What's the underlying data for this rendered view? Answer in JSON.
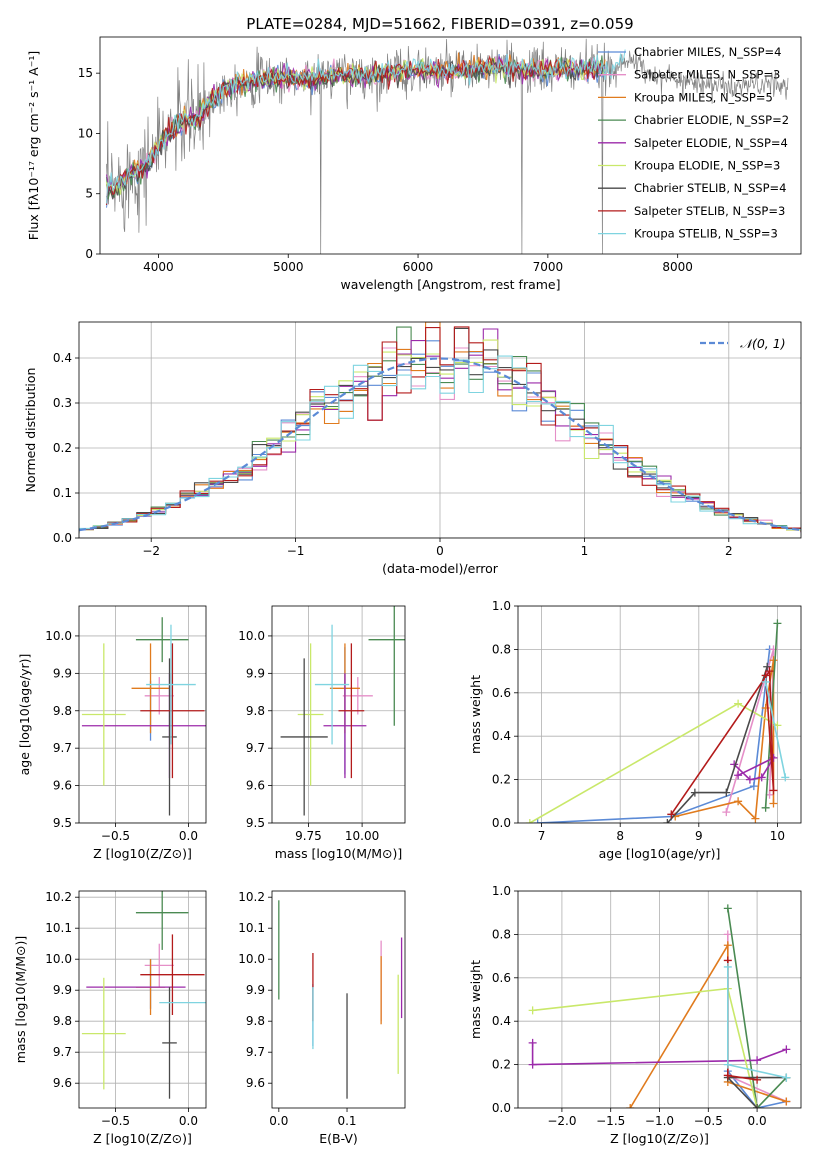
{
  "figure": {
    "title": "PLATE=0284, MJD=51662, FIBERID=0391, z=0.059"
  },
  "colors": {
    "observed": "#808080",
    "models": [
      "#5b8ad6",
      "#e58fc8",
      "#e07b1e",
      "#4a8a52",
      "#9b2aaa",
      "#c9e86a",
      "#4a4a4a",
      "#b31b1b",
      "#7fd4e0"
    ]
  },
  "chart_data": [
    {
      "id": "spectrum",
      "type": "line",
      "title": "PLATE=0284, MJD=51662, FIBERID=0391, z=0.059",
      "xlabel": "wavelength [Angstrom, rest frame]",
      "ylabel": "Flux [fλ10⁻¹⁷ erg cm⁻² s⁻¹ A⁻¹]",
      "xlim": [
        3550,
        8950
      ],
      "ylim": [
        0,
        18
      ],
      "xticks": [
        4000,
        5000,
        6000,
        7000,
        8000
      ],
      "yticks": [
        0,
        5,
        10,
        15
      ],
      "legend_position": "right",
      "legend": [
        "Chabrier MILES, N_SSP=4",
        "Salpeter MILES, N_SSP=3",
        "Kroupa MILES, N_SSP=5",
        "Chabrier ELODIE, N_SSP=2",
        "Salpeter ELODIE, N_SSP=4",
        "Kroupa ELODIE, N_SSP=3",
        "Chabrier STELIB, N_SSP=4",
        "Salpeter STELIB, N_SSP=3",
        "Kroupa STELIB, N_SSP=3"
      ],
      "continuum": {
        "x": [
          3600,
          3700,
          3800,
          3900,
          4000,
          4100,
          4200,
          4300,
          4400,
          4500,
          4600,
          4700,
          4800,
          4900,
          5000,
          5200,
          5400,
          5600,
          5800,
          6000,
          6200,
          6400,
          6600,
          6800,
          7000,
          7200,
          7400,
          7500,
          7600,
          7800,
          8000,
          8200,
          8400,
          8600,
          8800
        ],
        "y": [
          5.3,
          5.8,
          6.8,
          7.3,
          8.9,
          10.4,
          11.1,
          11.2,
          12.7,
          13.6,
          14.2,
          14.2,
          14.6,
          14.6,
          14.6,
          14.6,
          14.9,
          14.8,
          15.0,
          15.3,
          15.1,
          15.2,
          15.5,
          15.3,
          15.2,
          15.4,
          15.3,
          15.2,
          16.3,
          14.9,
          14.5,
          14.2,
          13.8,
          14.1,
          13.9
        ]
      }
    },
    {
      "id": "residuals",
      "type": "histogram",
      "xlabel": "(data-model)/error",
      "ylabel": "Normed distribution",
      "xlim": [
        -2.5,
        2.5
      ],
      "ylim": [
        0,
        0.48
      ],
      "xticks": [
        -2,
        -1,
        0,
        1,
        2
      ],
      "yticks": [
        0.0,
        0.1,
        0.2,
        0.3,
        0.4
      ],
      "legend": [
        "𝒩(0, 1)"
      ],
      "legend_position": "top-right",
      "grid": true
    },
    {
      "id": "age-vs-Z",
      "type": "errorbar",
      "xlabel": "Z [log10(Z/Z⊙)]",
      "ylabel": "age  [log10(age/yr)]",
      "xlim": [
        -0.75,
        0.12
      ],
      "ylim": [
        9.5,
        10.08
      ],
      "xticks": [
        -0.5,
        0.0
      ],
      "yticks": [
        9.5,
        9.6,
        9.7,
        9.8,
        9.9,
        10.0
      ],
      "grid": true,
      "points": [
        {
          "x": -0.26,
          "y": 9.8,
          "xerr": 0.0,
          "yerr": 0.08
        },
        {
          "x": -0.2,
          "y": 9.84,
          "xerr": 0.1,
          "yerr": 0.05
        },
        {
          "x": -0.26,
          "y": 9.86,
          "xerr": 0.13,
          "yerr": 0.12
        },
        {
          "x": -0.18,
          "y": 9.99,
          "xerr": 0.18,
          "yerr": 0.06
        },
        {
          "x": -0.13,
          "y": 9.76,
          "xerr": 0.6,
          "yerr": 0.14
        },
        {
          "x": -0.58,
          "y": 9.79,
          "xerr": 0.15,
          "yerr": 0.19
        },
        {
          "x": -0.13,
          "y": 9.73,
          "xerr": 0.05,
          "yerr": 0.21
        },
        {
          "x": -0.11,
          "y": 9.8,
          "xerr": 0.22,
          "yerr": 0.18
        },
        {
          "x": -0.12,
          "y": 9.87,
          "xerr": 0.17,
          "yerr": 0.16
        }
      ]
    },
    {
      "id": "age-vs-mass",
      "type": "errorbar",
      "xlabel": "mass [log10(M/M⊙)]",
      "ylabel": "",
      "xlim": [
        9.58,
        10.2
      ],
      "ylim": [
        9.5,
        10.08
      ],
      "xticks": [
        9.75,
        10.0
      ],
      "yticks": [
        9.5,
        9.6,
        9.7,
        9.8,
        9.9,
        10.0
      ],
      "grid": true,
      "points": [
        {
          "x": 9.92,
          "y": 9.8,
          "xerr": 0.0,
          "yerr": 0.17
        },
        {
          "x": 9.98,
          "y": 9.84,
          "xerr": 0.07,
          "yerr": 0.05
        },
        {
          "x": 9.92,
          "y": 9.86,
          "xerr": 0.07,
          "yerr": 0.12
        },
        {
          "x": 10.15,
          "y": 9.99,
          "xerr": 0.12,
          "yerr": 0.23
        },
        {
          "x": 9.92,
          "y": 9.76,
          "xerr": 0.1,
          "yerr": 0.14
        },
        {
          "x": 9.76,
          "y": 9.79,
          "xerr": 0.06,
          "yerr": 0.19
        },
        {
          "x": 9.73,
          "y": 9.73,
          "xerr": 0.11,
          "yerr": 0.21
        },
        {
          "x": 9.95,
          "y": 9.8,
          "xerr": 0.06,
          "yerr": 0.18
        },
        {
          "x": 9.86,
          "y": 9.87,
          "xerr": 0.08,
          "yerr": 0.16
        }
      ]
    },
    {
      "id": "mass-weight-vs-age",
      "type": "line",
      "xlabel": "age  [log10(age/yr)]",
      "ylabel": "mass weight",
      "xlim": [
        6.7,
        10.3
      ],
      "ylim": [
        0,
        1
      ],
      "xticks": [
        7,
        8,
        9,
        10
      ],
      "yticks": [
        0.0,
        0.2,
        0.4,
        0.6,
        0.8,
        1.0
      ],
      "grid": true,
      "series": [
        {
          "points": [
            [
              6.95,
              0.0
            ],
            [
              8.65,
              0.03
            ],
            [
              9.7,
              0.17
            ],
            [
              9.9,
              0.8
            ]
          ]
        },
        {
          "points": [
            [
              9.35,
              0.05
            ],
            [
              9.95,
              0.8
            ],
            [
              9.9,
              0.13
            ]
          ]
        },
        {
          "points": [
            [
              8.7,
              0.03
            ],
            [
              9.5,
              0.1
            ],
            [
              9.72,
              0.02
            ],
            [
              9.85,
              0.53
            ],
            [
              9.95,
              0.75
            ],
            [
              9.95,
              0.09
            ]
          ]
        },
        {
          "points": [
            [
              9.85,
              0.07
            ],
            [
              10.0,
              0.92
            ]
          ]
        },
        {
          "points": [
            [
              9.45,
              0.27
            ],
            [
              9.65,
              0.2
            ],
            [
              9.8,
              0.21
            ],
            [
              9.95,
              0.3
            ],
            [
              9.5,
              0.22
            ]
          ]
        },
        {
          "points": [
            [
              6.85,
              0.0
            ],
            [
              9.5,
              0.55
            ],
            [
              10.0,
              0.45
            ]
          ]
        },
        {
          "points": [
            [
              8.6,
              0.0
            ],
            [
              8.95,
              0.14
            ],
            [
              9.35,
              0.14
            ],
            [
              9.87,
              0.72
            ]
          ]
        },
        {
          "points": [
            [
              8.65,
              0.04
            ],
            [
              9.9,
              0.7
            ],
            [
              9.95,
              0.15
            ],
            [
              9.85,
              0.68
            ]
          ]
        },
        {
          "points": [
            [
              9.85,
              0.65
            ],
            [
              10.1,
              0.21
            ]
          ]
        }
      ]
    },
    {
      "id": "mass-vs-Z",
      "type": "errorbar",
      "xlabel": "Z [log10(Z/Z⊙)]",
      "ylabel": "mass [log10(M/M⊙)]",
      "xlim": [
        -0.75,
        0.12
      ],
      "ylim": [
        9.52,
        10.22
      ],
      "xticks": [
        -0.5,
        0.0
      ],
      "yticks": [
        9.6,
        9.7,
        9.8,
        9.9,
        10.0,
        10.1,
        10.2
      ],
      "grid": true,
      "points": [
        {
          "x": -0.26,
          "y": 9.92,
          "xerr": 0.0,
          "yerr": 0.08
        },
        {
          "x": -0.2,
          "y": 9.98,
          "xerr": 0.1,
          "yerr": 0.07
        },
        {
          "x": -0.26,
          "y": 9.91,
          "xerr": 0.1,
          "yerr": 0.09
        },
        {
          "x": -0.18,
          "y": 10.15,
          "xerr": 0.18,
          "yerr": 0.12
        },
        {
          "x": -0.36,
          "y": 9.91,
          "xerr": 0.34,
          "yerr": 0.0
        },
        {
          "x": -0.58,
          "y": 9.76,
          "xerr": 0.15,
          "yerr": 0.18
        },
        {
          "x": -0.13,
          "y": 9.73,
          "xerr": 0.05,
          "yerr": 0.18
        },
        {
          "x": -0.11,
          "y": 9.95,
          "xerr": 0.22,
          "yerr": 0.13
        },
        {
          "x": -0.04,
          "y": 9.86,
          "xerr": 0.16,
          "yerr": 0.0
        }
      ]
    },
    {
      "id": "mass-vs-EBV",
      "type": "errorbar",
      "xlabel": "E(B-V)",
      "ylabel": "",
      "xlim": [
        -0.01,
        0.185
      ],
      "ylim": [
        9.52,
        10.22
      ],
      "xticks": [
        0.0,
        0.1
      ],
      "yticks": [
        9.6,
        9.7,
        9.8,
        9.9,
        10.0,
        10.1,
        10.2
      ],
      "grid": false,
      "points": [
        {
          "x": 0.05,
          "y": 9.82,
          "xerr": 0,
          "yerr": 0.1
        },
        {
          "x": 0.15,
          "y": 9.93,
          "xerr": 0,
          "yerr": 0.13
        },
        {
          "x": 0.15,
          "y": 9.9,
          "xerr": 0,
          "yerr": 0.11
        },
        {
          "x": 0.0,
          "y": 10.03,
          "xerr": 0,
          "yerr": 0.16
        },
        {
          "x": 0.18,
          "y": 9.94,
          "xerr": 0,
          "yerr": 0.13
        },
        {
          "x": 0.175,
          "y": 9.79,
          "xerr": 0,
          "yerr": 0.16
        },
        {
          "x": 0.1,
          "y": 9.72,
          "xerr": 0,
          "yerr": 0.17
        },
        {
          "x": 0.05,
          "y": 9.91,
          "xerr": 0,
          "yerr": 0.11
        },
        {
          "x": 0.05,
          "y": 9.81,
          "xerr": 0,
          "yerr": 0.1
        }
      ]
    },
    {
      "id": "mass-weight-vs-Z",
      "type": "line",
      "xlabel": "Z [log10(Z/Z⊙)]",
      "ylabel": "mass weight",
      "xlim": [
        -2.45,
        0.45
      ],
      "ylim": [
        0,
        1
      ],
      "xticks": [
        -2.0,
        -1.5,
        -1.0,
        -0.5,
        0.0
      ],
      "yticks": [
        0.0,
        0.2,
        0.4,
        0.6,
        0.8,
        1.0
      ],
      "grid": true,
      "series": [
        {
          "points": [
            [
              -0.3,
              0.17
            ],
            [
              0.0,
              0.0
            ],
            [
              0.3,
              0.03
            ]
          ]
        },
        {
          "points": [
            [
              -0.3,
              0.8
            ],
            [
              -0.3,
              0.15
            ],
            [
              0.3,
              0.03
            ]
          ]
        },
        {
          "points": [
            [
              -1.3,
              0.0
            ],
            [
              -0.3,
              0.75
            ],
            [
              -0.3,
              0.12
            ],
            [
              0.3,
              0.03
            ]
          ]
        },
        {
          "points": [
            [
              -0.3,
              0.92
            ],
            [
              0.0,
              0.0
            ],
            [
              0.3,
              0.14
            ]
          ]
        },
        {
          "points": [
            [
              -2.3,
              0.3
            ],
            [
              -2.3,
              0.2
            ],
            [
              0.0,
              0.22
            ],
            [
              0.3,
              0.27
            ]
          ]
        },
        {
          "points": [
            [
              -2.3,
              0.45
            ],
            [
              -0.3,
              0.55
            ],
            [
              0.0,
              0.0
            ]
          ]
        },
        {
          "points": [
            [
              0.0,
              0.0
            ],
            [
              -0.3,
              0.14
            ],
            [
              0.3,
              0.14
            ]
          ]
        },
        {
          "points": [
            [
              -0.3,
              0.68
            ],
            [
              -0.3,
              0.15
            ],
            [
              0.0,
              0.13
            ]
          ]
        },
        {
          "points": [
            [
              -0.3,
              0.65
            ],
            [
              -0.3,
              0.2
            ],
            [
              0.3,
              0.14
            ]
          ]
        }
      ]
    }
  ]
}
